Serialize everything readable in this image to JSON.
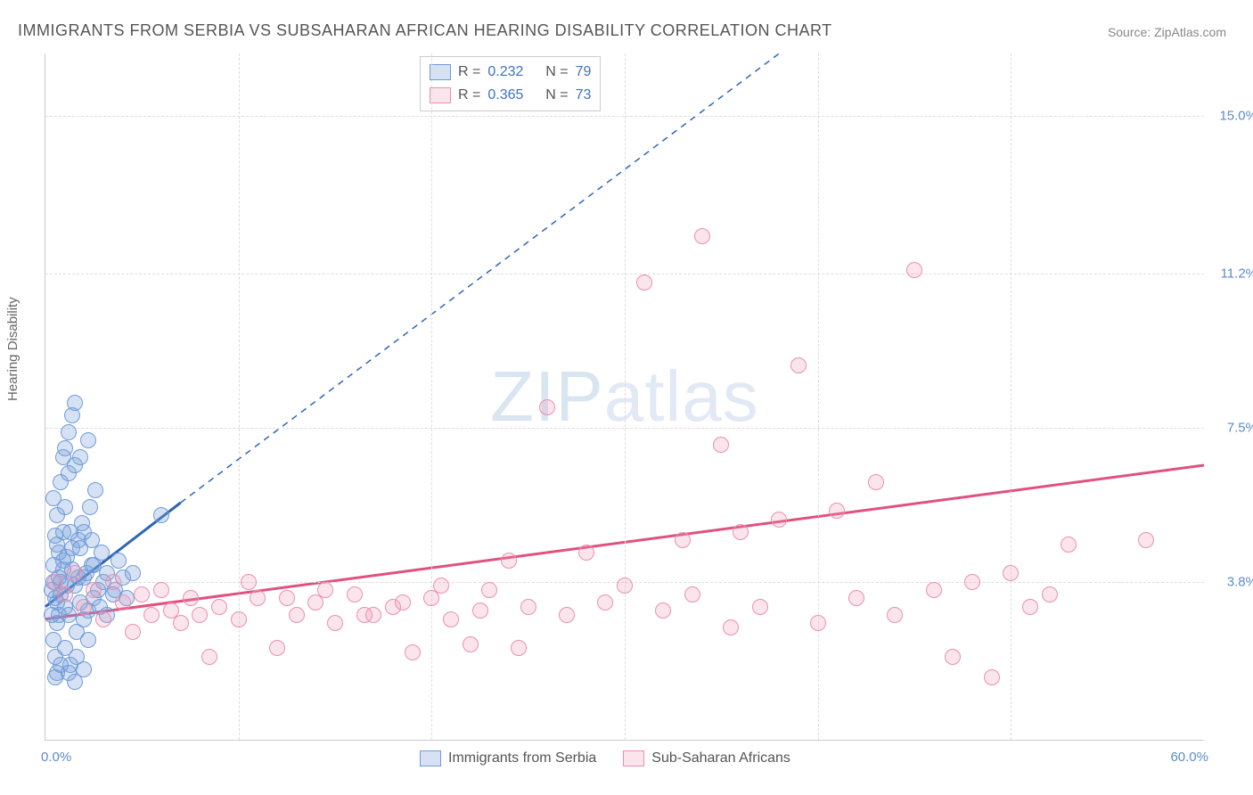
{
  "title": "IMMIGRANTS FROM SERBIA VS SUBSAHARAN AFRICAN HEARING DISABILITY CORRELATION CHART",
  "source": "Source: ZipAtlas.com",
  "ylabel": "Hearing Disability",
  "watermark_part1": "ZIP",
  "watermark_part2": "atlas",
  "chart": {
    "type": "scatter",
    "xlim": [
      0,
      60
    ],
    "ylim": [
      0,
      16.5
    ],
    "background_color": "#ffffff",
    "grid_color": "#dddddd",
    "ygrid": [
      3.8,
      7.5,
      11.2,
      15.0
    ],
    "ytick_labels": [
      "3.8%",
      "7.5%",
      "11.2%",
      "15.0%"
    ],
    "ytick_color": "#5b8bc9",
    "xgrid": [
      10,
      20,
      30,
      40,
      50
    ],
    "xtick_left": "0.0%",
    "xtick_right": "60.0%",
    "xtick_color": "#5b8bc9",
    "marker_radius": 8,
    "series": [
      {
        "name": "Immigrants from Serbia",
        "R": "0.232",
        "N": "79",
        "fill": "rgba(120,160,220,0.30)",
        "stroke": "#6f9bd8",
        "trend_color": "#2e66b5",
        "trend_solid": {
          "x1": 0,
          "y1": 3.2,
          "x2": 7,
          "y2": 5.7
        },
        "trend_dash": {
          "x1": 7,
          "y1": 5.7,
          "x2": 38,
          "y2": 16.5
        },
        "points": [
          [
            0.3,
            3.6
          ],
          [
            0.4,
            3.8
          ],
          [
            0.5,
            2.0
          ],
          [
            0.6,
            1.6
          ],
          [
            0.7,
            3.9
          ],
          [
            0.8,
            3.5
          ],
          [
            0.9,
            4.1
          ],
          [
            1.0,
            3.2
          ],
          [
            1.1,
            4.4
          ],
          [
            1.2,
            3.0
          ],
          [
            1.3,
            5.0
          ],
          [
            1.4,
            4.6
          ],
          [
            1.5,
            3.7
          ],
          [
            1.6,
            2.6
          ],
          [
            1.7,
            4.8
          ],
          [
            1.8,
            3.3
          ],
          [
            1.9,
            5.2
          ],
          [
            2.0,
            3.9
          ],
          [
            2.1,
            4.0
          ],
          [
            2.2,
            3.1
          ],
          [
            2.3,
            5.6
          ],
          [
            2.4,
            4.2
          ],
          [
            2.5,
            3.4
          ],
          [
            2.6,
            6.0
          ],
          [
            0.5,
            4.9
          ],
          [
            0.6,
            5.4
          ],
          [
            0.8,
            6.2
          ],
          [
            0.9,
            6.8
          ],
          [
            1.0,
            7.0
          ],
          [
            1.2,
            7.4
          ],
          [
            1.4,
            7.8
          ],
          [
            1.5,
            8.1
          ],
          [
            0.4,
            2.4
          ],
          [
            0.6,
            2.8
          ],
          [
            0.7,
            3.0
          ],
          [
            1.0,
            2.2
          ],
          [
            1.3,
            1.8
          ],
          [
            1.6,
            2.0
          ],
          [
            2.0,
            2.9
          ],
          [
            2.2,
            2.4
          ],
          [
            2.5,
            4.2
          ],
          [
            2.7,
            3.6
          ],
          [
            2.9,
            4.5
          ],
          [
            3.0,
            3.8
          ],
          [
            3.2,
            4.0
          ],
          [
            3.5,
            3.5
          ],
          [
            3.8,
            4.3
          ],
          [
            4.0,
            3.9
          ],
          [
            1.0,
            5.6
          ],
          [
            1.2,
            6.4
          ],
          [
            0.7,
            4.5
          ],
          [
            0.9,
            5.0
          ],
          [
            1.5,
            6.6
          ],
          [
            0.4,
            4.2
          ],
          [
            0.5,
            3.4
          ],
          [
            0.8,
            3.8
          ],
          [
            1.8,
            4.6
          ],
          [
            2.0,
            5.0
          ],
          [
            2.4,
            4.8
          ],
          [
            2.8,
            3.2
          ],
          [
            3.2,
            3.0
          ],
          [
            3.6,
            3.6
          ],
          [
            4.2,
            3.4
          ],
          [
            4.5,
            4.0
          ],
          [
            0.5,
            1.5
          ],
          [
            0.8,
            1.8
          ],
          [
            1.2,
            1.6
          ],
          [
            1.5,
            1.4
          ],
          [
            2.0,
            1.7
          ],
          [
            0.3,
            3.0
          ],
          [
            0.6,
            3.3
          ],
          [
            1.1,
            3.7
          ],
          [
            1.8,
            6.8
          ],
          [
            2.2,
            7.2
          ],
          [
            6.0,
            5.4
          ],
          [
            0.4,
            5.8
          ],
          [
            0.6,
            4.7
          ],
          [
            0.9,
            4.3
          ],
          [
            1.4,
            4.1
          ],
          [
            1.7,
            3.9
          ]
        ]
      },
      {
        "name": "Sub-Saharan Africans",
        "R": "0.365",
        "N": "73",
        "fill": "rgba(240,150,180,0.25)",
        "stroke": "#ec8fae",
        "trend_color": "#e0527d",
        "trend_solid": {
          "x1": 0,
          "y1": 2.9,
          "x2": 60,
          "y2": 6.6
        },
        "points": [
          [
            0.5,
            3.8
          ],
          [
            1.0,
            3.5
          ],
          [
            1.5,
            4.0
          ],
          [
            2.0,
            3.2
          ],
          [
            2.5,
            3.6
          ],
          [
            3.0,
            2.9
          ],
          [
            3.5,
            3.8
          ],
          [
            4.0,
            3.3
          ],
          [
            4.5,
            2.6
          ],
          [
            5.0,
            3.5
          ],
          [
            5.5,
            3.0
          ],
          [
            6.0,
            3.6
          ],
          [
            6.5,
            3.1
          ],
          [
            7.0,
            2.8
          ],
          [
            7.5,
            3.4
          ],
          [
            8.0,
            3.0
          ],
          [
            8.5,
            2.0
          ],
          [
            9.0,
            3.2
          ],
          [
            10.0,
            2.9
          ],
          [
            11.0,
            3.4
          ],
          [
            12.0,
            2.2
          ],
          [
            13.0,
            3.0
          ],
          [
            14.0,
            3.3
          ],
          [
            15.0,
            2.8
          ],
          [
            16.0,
            3.5
          ],
          [
            17.0,
            3.0
          ],
          [
            18.0,
            3.2
          ],
          [
            19.0,
            2.1
          ],
          [
            20.0,
            3.4
          ],
          [
            21.0,
            2.9
          ],
          [
            22.0,
            2.3
          ],
          [
            23.0,
            3.6
          ],
          [
            24.0,
            4.3
          ],
          [
            25.0,
            3.2
          ],
          [
            26.0,
            8.0
          ],
          [
            27.0,
            3.0
          ],
          [
            28.0,
            4.5
          ],
          [
            29.0,
            3.3
          ],
          [
            30.0,
            3.7
          ],
          [
            31.0,
            11.0
          ],
          [
            32.0,
            3.1
          ],
          [
            33.0,
            4.8
          ],
          [
            34.0,
            12.1
          ],
          [
            35.0,
            7.1
          ],
          [
            36.0,
            5.0
          ],
          [
            37.0,
            3.2
          ],
          [
            38.0,
            5.3
          ],
          [
            39.0,
            9.0
          ],
          [
            40.0,
            2.8
          ],
          [
            41.0,
            5.5
          ],
          [
            42.0,
            3.4
          ],
          [
            43.0,
            6.2
          ],
          [
            44.0,
            3.0
          ],
          [
            45.0,
            11.3
          ],
          [
            46.0,
            3.6
          ],
          [
            47.0,
            2.0
          ],
          [
            48.0,
            3.8
          ],
          [
            49.0,
            1.5
          ],
          [
            50.0,
            4.0
          ],
          [
            51.0,
            3.2
          ],
          [
            52.0,
            3.5
          ],
          [
            53.0,
            4.7
          ],
          [
            10.5,
            3.8
          ],
          [
            12.5,
            3.4
          ],
          [
            14.5,
            3.6
          ],
          [
            16.5,
            3.0
          ],
          [
            18.5,
            3.3
          ],
          [
            20.5,
            3.7
          ],
          [
            22.5,
            3.1
          ],
          [
            24.5,
            2.2
          ],
          [
            33.5,
            3.5
          ],
          [
            35.5,
            2.7
          ],
          [
            57.0,
            4.8
          ]
        ]
      }
    ]
  },
  "legend_top": {
    "R_label": "R =",
    "N_label": "N =",
    "text_color": "#555555",
    "value_color": "#3b72c4"
  },
  "legend_bottom_color": "#555555"
}
